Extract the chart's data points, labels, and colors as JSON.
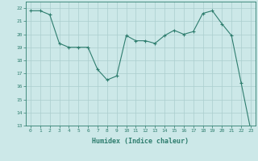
{
  "x": [
    0,
    1,
    2,
    3,
    4,
    5,
    6,
    7,
    8,
    9,
    10,
    11,
    12,
    13,
    14,
    15,
    16,
    17,
    18,
    19,
    20,
    21,
    22,
    23
  ],
  "y": [
    21.8,
    21.8,
    21.5,
    19.3,
    19.0,
    19.0,
    19.0,
    17.3,
    16.5,
    16.8,
    19.9,
    19.5,
    19.5,
    19.3,
    19.9,
    20.3,
    20.0,
    20.2,
    21.6,
    21.8,
    20.8,
    19.9,
    16.3,
    12.7
  ],
  "line_color": "#2e7d6e",
  "marker": "+",
  "marker_size": 3,
  "bg_color": "#cce8e8",
  "grid_color": "#aacece",
  "xlabel": "Humidex (Indice chaleur)",
  "xlim": [
    -0.5,
    23.5
  ],
  "ylim": [
    13,
    22.5
  ],
  "yticks": [
    13,
    14,
    15,
    16,
    17,
    18,
    19,
    20,
    21,
    22
  ],
  "xticks": [
    0,
    1,
    2,
    3,
    4,
    5,
    6,
    7,
    8,
    9,
    10,
    11,
    12,
    13,
    14,
    15,
    16,
    17,
    18,
    19,
    20,
    21,
    22,
    23
  ],
  "tick_color": "#2e7d6e",
  "label_color": "#2e7d6e",
  "spine_color": "#2e7d6e"
}
